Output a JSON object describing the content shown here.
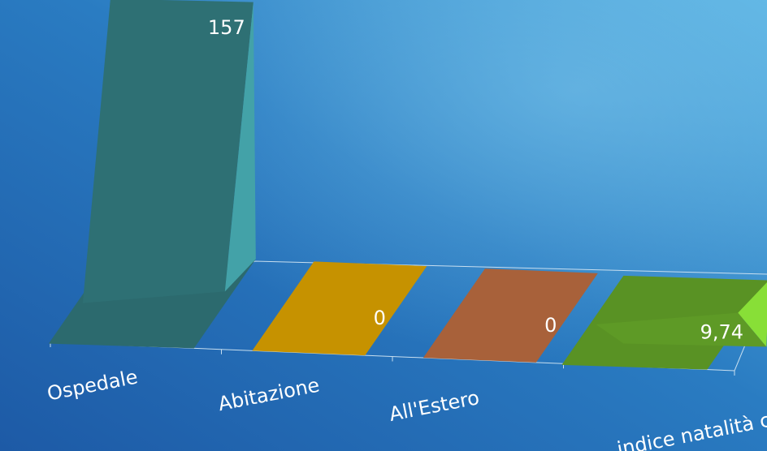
{
  "chart_data": {
    "type": "bar",
    "title": "",
    "xlabel": "",
    "ylabel": "",
    "categories": [
      "Ospedale",
      "Abitazione",
      "All'Estero",
      "indice natalità c.le"
    ],
    "values": [
      157,
      0,
      0,
      9.74
    ],
    "value_labels": [
      "157",
      "0",
      "0",
      "9,74"
    ],
    "colors": [
      "#2e7074",
      "#c69200",
      "#a8613a",
      "#5e9a26"
    ],
    "three_d": true,
    "grid": false,
    "legend": "none"
  }
}
